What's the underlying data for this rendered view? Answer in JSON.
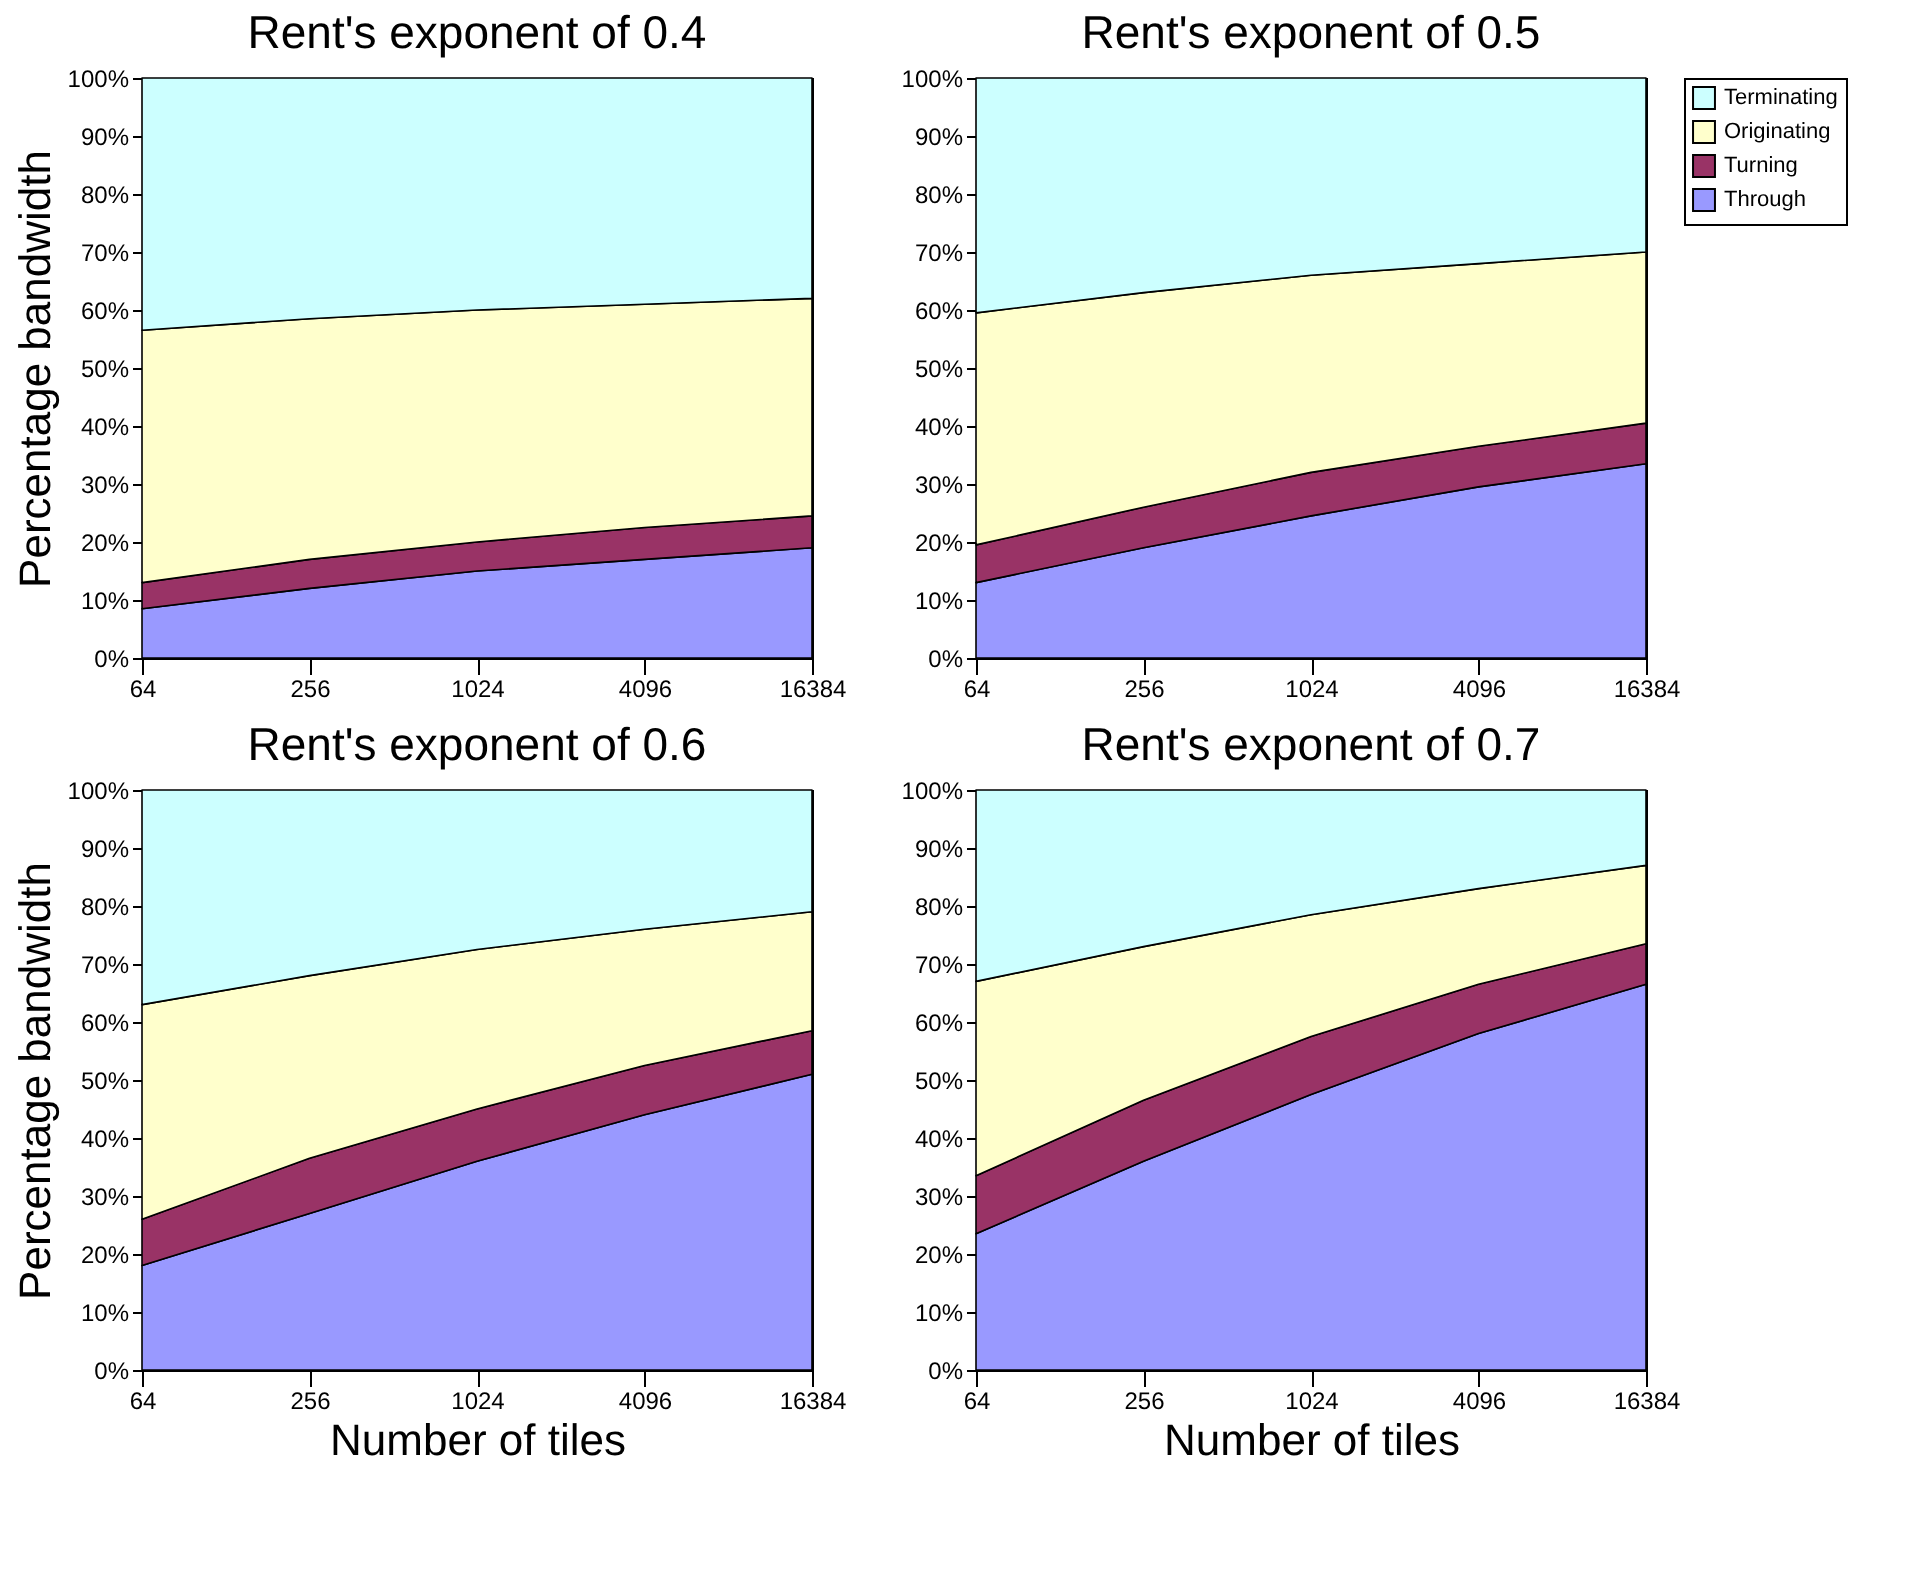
{
  "chart_data": [
    {
      "type": "area",
      "stacked": true,
      "title": "Rent's exponent of 0.4",
      "ylabel": "Percentage bandwidth",
      "categories": [
        "64",
        "256",
        "1024",
        "4096",
        "16384"
      ],
      "ylim": [
        0,
        100
      ],
      "yticks": [
        {
          "value": 0,
          "label": "0%"
        },
        {
          "value": 10,
          "label": "10%"
        },
        {
          "value": 20,
          "label": "20%"
        },
        {
          "value": 30,
          "label": "30%"
        },
        {
          "value": 40,
          "label": "40%"
        },
        {
          "value": 50,
          "label": "50%"
        },
        {
          "value": 60,
          "label": "60%"
        },
        {
          "value": 70,
          "label": "70%"
        },
        {
          "value": 80,
          "label": "80%"
        },
        {
          "value": 90,
          "label": "90%"
        },
        {
          "value": 100,
          "label": "100%"
        }
      ],
      "grid": false,
      "series": [
        {
          "color": "#9999ff",
          "values": [
            8.5,
            12,
            15,
            17,
            19
          ]
        },
        {
          "color": "#993366",
          "values": [
            4.5,
            5,
            5,
            5.5,
            5.5
          ]
        },
        {
          "color": "#ffffcc",
          "values": [
            43.5,
            41.5,
            40,
            38.5,
            37.5
          ]
        },
        {
          "color": "#ccffff",
          "values": [
            43.5,
            41.5,
            40,
            39,
            38
          ]
        }
      ]
    },
    {
      "type": "area",
      "stacked": true,
      "title": "Rent's exponent of 0.5",
      "categories": [
        "64",
        "256",
        "1024",
        "4096",
        "16384"
      ],
      "ylim": [
        0,
        100
      ],
      "yticks": [
        {
          "value": 0,
          "label": "0%"
        },
        {
          "value": 10,
          "label": "10%"
        },
        {
          "value": 20,
          "label": "20%"
        },
        {
          "value": 30,
          "label": "30%"
        },
        {
          "value": 40,
          "label": "40%"
        },
        {
          "value": 50,
          "label": "50%"
        },
        {
          "value": 60,
          "label": "60%"
        },
        {
          "value": 70,
          "label": "70%"
        },
        {
          "value": 80,
          "label": "80%"
        },
        {
          "value": 90,
          "label": "90%"
        },
        {
          "value": 100,
          "label": "100%"
        }
      ],
      "grid": false,
      "legend": "top right",
      "series": [
        {
          "name": "Through",
          "color": "#9999ff",
          "values": [
            13,
            19,
            24.5,
            29.5,
            33.5
          ]
        },
        {
          "name": "Turning",
          "color": "#993366",
          "values": [
            6.5,
            7,
            7.5,
            7,
            7
          ]
        },
        {
          "name": "Originating",
          "color": "#ffffcc",
          "values": [
            40,
            37,
            34,
            31.5,
            29.5
          ]
        },
        {
          "name": "Terminating",
          "color": "#ccffff",
          "values": [
            40.5,
            37,
            34,
            32,
            30
          ]
        }
      ]
    },
    {
      "type": "area",
      "stacked": true,
      "title": "Rent's exponent of 0.6",
      "ylabel": "Percentage bandwidth",
      "xlabel": "Number of tiles",
      "categories": [
        "64",
        "256",
        "1024",
        "4096",
        "16384"
      ],
      "ylim": [
        0,
        100
      ],
      "yticks": [
        {
          "value": 0,
          "label": "0%"
        },
        {
          "value": 10,
          "label": "10%"
        },
        {
          "value": 20,
          "label": "20%"
        },
        {
          "value": 30,
          "label": "30%"
        },
        {
          "value": 40,
          "label": "40%"
        },
        {
          "value": 50,
          "label": "50%"
        },
        {
          "value": 60,
          "label": "60%"
        },
        {
          "value": 70,
          "label": "70%"
        },
        {
          "value": 80,
          "label": "80%"
        },
        {
          "value": 90,
          "label": "90%"
        },
        {
          "value": 100,
          "label": "100%"
        }
      ],
      "grid": false,
      "series": [
        {
          "color": "#9999ff",
          "values": [
            18,
            27,
            36,
            44,
            51
          ]
        },
        {
          "color": "#993366",
          "values": [
            8,
            9.5,
            9,
            8.5,
            7.5
          ]
        },
        {
          "color": "#ffffcc",
          "values": [
            37,
            31.5,
            27.5,
            23.5,
            20.5
          ]
        },
        {
          "color": "#ccffff",
          "values": [
            37,
            32,
            27.5,
            24,
            21
          ]
        }
      ]
    },
    {
      "type": "area",
      "stacked": true,
      "title": "Rent's exponent of 0.7",
      "xlabel": "Number of tiles",
      "categories": [
        "64",
        "256",
        "1024",
        "4096",
        "16384"
      ],
      "ylim": [
        0,
        100
      ],
      "yticks": [
        {
          "value": 0,
          "label": "0%"
        },
        {
          "value": 10,
          "label": "10%"
        },
        {
          "value": 20,
          "label": "20%"
        },
        {
          "value": 30,
          "label": "30%"
        },
        {
          "value": 40,
          "label": "40%"
        },
        {
          "value": 50,
          "label": "50%"
        },
        {
          "value": 60,
          "label": "60%"
        },
        {
          "value": 70,
          "label": "70%"
        },
        {
          "value": 80,
          "label": "80%"
        },
        {
          "value": 90,
          "label": "90%"
        },
        {
          "value": 100,
          "label": "100%"
        }
      ],
      "grid": false,
      "series": [
        {
          "color": "#9999ff",
          "values": [
            23.5,
            36,
            47.5,
            58,
            66.5
          ]
        },
        {
          "color": "#993366",
          "values": [
            10,
            10.5,
            10,
            8.5,
            7
          ]
        },
        {
          "color": "#ffffcc",
          "values": [
            33.5,
            26.5,
            21,
            16.5,
            13.5
          ]
        },
        {
          "color": "#ccffff",
          "values": [
            33,
            27,
            21.5,
            17,
            13
          ]
        }
      ]
    }
  ]
}
